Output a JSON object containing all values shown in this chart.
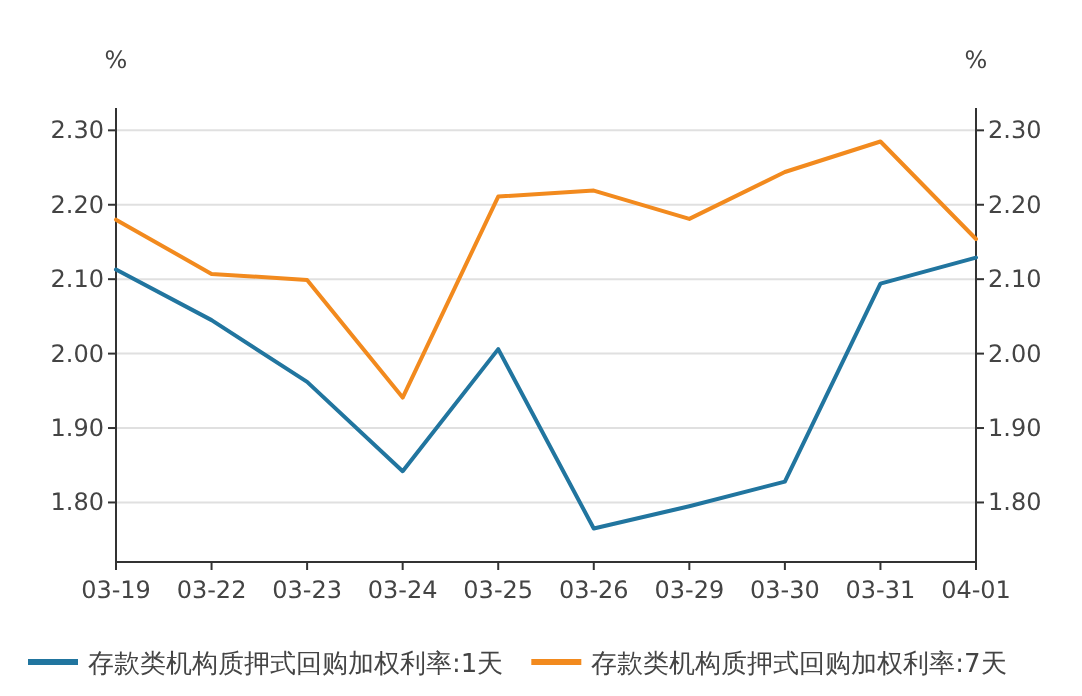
{
  "chart_data": {
    "type": "line",
    "ylabel": "%",
    "y2label": "%",
    "categories": [
      "03-19",
      "03-22",
      "03-23",
      "03-24",
      "03-25",
      "03-26",
      "03-29",
      "03-30",
      "03-31",
      "04-01"
    ],
    "series": [
      {
        "name": "存款类机构质押式回购加权利率:1天",
        "color": "#21759f",
        "values": [
          2.113,
          2.045,
          1.962,
          1.842,
          2.006,
          1.765,
          1.795,
          1.828,
          2.094,
          2.129
        ]
      },
      {
        "name": "存款类机构质押式回购加权利率:7天",
        "color": "#f28a1e",
        "values": [
          2.18,
          2.107,
          2.099,
          1.941,
          2.211,
          2.219,
          2.181,
          2.244,
          2.285,
          2.154
        ]
      }
    ],
    "ylim": [
      1.72,
      2.33
    ],
    "yticks": [
      {
        "value": 1.8,
        "label": "1.80"
      },
      {
        "value": 1.9,
        "label": "1.90"
      },
      {
        "value": 2.0,
        "label": "2.00"
      },
      {
        "value": 2.1,
        "label": "2.10"
      },
      {
        "value": 2.2,
        "label": "2.20"
      },
      {
        "value": 2.3,
        "label": "2.30"
      }
    ],
    "y2lim": [
      1.72,
      2.33
    ],
    "y2ticks": [
      {
        "value": 1.8,
        "label": "1.80"
      },
      {
        "value": 1.9,
        "label": "1.90"
      },
      {
        "value": 2.0,
        "label": "2.00"
      },
      {
        "value": 2.1,
        "label": "2.10"
      },
      {
        "value": 2.2,
        "label": "2.20"
      },
      {
        "value": 2.3,
        "label": "2.30"
      }
    ],
    "grid": "y",
    "legend": "bottom",
    "marker": "none",
    "line_style": "solid"
  }
}
